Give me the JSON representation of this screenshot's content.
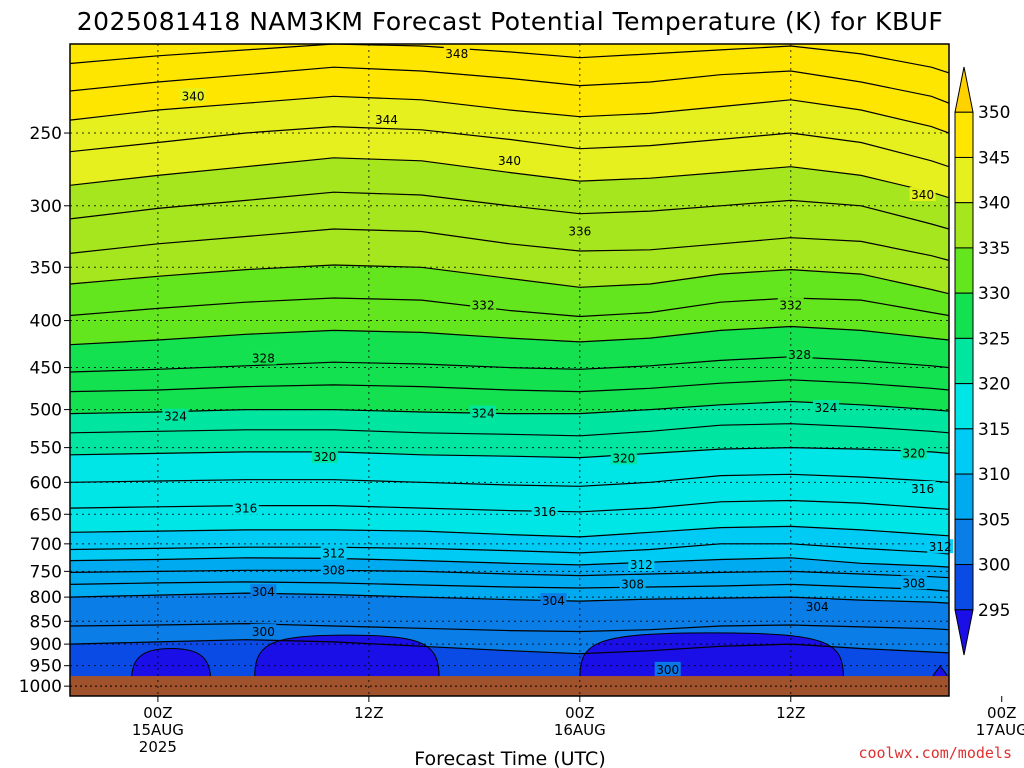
{
  "chart_data": {
    "type": "heatmap",
    "title": "2025081418 NAM3KM Forecast Potential Temperature (K) for KBUF",
    "xlabel": "Forecast Time (UTC)",
    "ylabel": "",
    "credit": "coolwx.com/models",
    "x_range_hours": [
      -5,
      45
    ],
    "y_axis": {
      "scale": "log",
      "ticks": [
        250,
        300,
        350,
        400,
        450,
        500,
        550,
        600,
        650,
        700,
        750,
        800,
        850,
        900,
        950,
        1000
      ],
      "range": [
        200,
        1025
      ]
    },
    "x_ticks": [
      {
        "hour": 0,
        "lines": [
          "00Z",
          "15AUG",
          "2025"
        ]
      },
      {
        "hour": 12,
        "lines": [
          "12Z"
        ]
      },
      {
        "hour": 24,
        "lines": [
          "00Z",
          "16AUG"
        ]
      },
      {
        "hour": 36,
        "lines": [
          "12Z"
        ]
      },
      {
        "hour": 48,
        "lines": [
          "00Z",
          "17AUG"
        ]
      }
    ],
    "grid": true,
    "colorbar": {
      "levels": [
        295,
        300,
        305,
        310,
        315,
        320,
        325,
        330,
        335,
        340,
        345,
        350
      ],
      "colors": [
        "#1a0fe6",
        "#0a4be6",
        "#0a7de6",
        "#00aaf0",
        "#00cbf5",
        "#00e6e6",
        "#00e6a0",
        "#14e150",
        "#64e61e",
        "#a6e61e",
        "#e6f01e",
        "#ffe600",
        "#ffd200"
      ]
    },
    "contour_levels": [
      300,
      302,
      304,
      306,
      308,
      310,
      312,
      314,
      316,
      318,
      320,
      322,
      324,
      326,
      328,
      330,
      332,
      334,
      336,
      338,
      340,
      342,
      344,
      346,
      348
    ],
    "isentropes": [
      {
        "theta": 300,
        "pressure": [
          900,
          895,
          890,
          895,
          905,
          915,
          922,
          915,
          905,
          900,
          910,
          918,
          920
        ]
      },
      {
        "theta": 302,
        "pressure": [
          860,
          858,
          855,
          860,
          865,
          870,
          872,
          868,
          860,
          858,
          862,
          866,
          868
        ]
      },
      {
        "theta": 304,
        "pressure": [
          800,
          796,
          792,
          795,
          800,
          805,
          808,
          804,
          802,
          800,
          806,
          810,
          812
        ]
      },
      {
        "theta": 306,
        "pressure": [
          775,
          772,
          770,
          772,
          776,
          780,
          782,
          780,
          778,
          775,
          780,
          785,
          788
        ]
      },
      {
        "theta": 308,
        "pressure": [
          752,
          750,
          748,
          748,
          750,
          755,
          758,
          755,
          752,
          750,
          755,
          760,
          762
        ]
      },
      {
        "theta": 310,
        "pressure": [
          730,
          728,
          725,
          726,
          730,
          735,
          738,
          733,
          728,
          725,
          735,
          740,
          742
        ]
      },
      {
        "theta": 312,
        "pressure": [
          710,
          708,
          706,
          706,
          708,
          712,
          716,
          710,
          700,
          700,
          708,
          715,
          718
        ]
      },
      {
        "theta": 314,
        "pressure": [
          680,
          678,
          676,
          676,
          678,
          684,
          688,
          680,
          672,
          670,
          676,
          684,
          686
        ]
      },
      {
        "theta": 316,
        "pressure": [
          640,
          638,
          636,
          636,
          640,
          644,
          646,
          640,
          630,
          628,
          632,
          640,
          642
        ]
      },
      {
        "theta": 318,
        "pressure": [
          600,
          598,
          596,
          596,
          600,
          604,
          606,
          600,
          590,
          588,
          592,
          598,
          600
        ]
      },
      {
        "theta": 320,
        "pressure": [
          560,
          558,
          556,
          556,
          560,
          562,
          564,
          558,
          552,
          550,
          552,
          556,
          558
        ]
      },
      {
        "theta": 322,
        "pressure": [
          530,
          528,
          526,
          526,
          530,
          532,
          534,
          528,
          520,
          518,
          522,
          528,
          530
        ]
      },
      {
        "theta": 324,
        "pressure": [
          505,
          503,
          500,
          500,
          503,
          505,
          505,
          500,
          494,
          490,
          494,
          500,
          502
        ]
      },
      {
        "theta": 326,
        "pressure": [
          478,
          476,
          472,
          470,
          472,
          476,
          478,
          474,
          468,
          464,
          468,
          474,
          476
        ]
      },
      {
        "theta": 328,
        "pressure": [
          455,
          452,
          448,
          444,
          446,
          450,
          452,
          448,
          442,
          438,
          442,
          448,
          450
        ]
      },
      {
        "theta": 330,
        "pressure": [
          425,
          420,
          414,
          410,
          412,
          418,
          422,
          418,
          410,
          406,
          410,
          418,
          420
        ]
      },
      {
        "theta": 332,
        "pressure": [
          395,
          388,
          382,
          378,
          380,
          390,
          396,
          392,
          382,
          378,
          380,
          392,
          395
        ]
      },
      {
        "theta": 334,
        "pressure": [
          365,
          358,
          352,
          348,
          350,
          360,
          368,
          365,
          356,
          352,
          356,
          370,
          374
        ]
      },
      {
        "theta": 336,
        "pressure": [
          338,
          330,
          324,
          318,
          320,
          330,
          336,
          335,
          330,
          325,
          328,
          340,
          344
        ]
      },
      {
        "theta": 338,
        "pressure": [
          310,
          302,
          296,
          290,
          292,
          300,
          306,
          304,
          300,
          296,
          300,
          314,
          318
        ]
      },
      {
        "theta": 340,
        "pressure": [
          285,
          278,
          272,
          266,
          268,
          276,
          282,
          280,
          276,
          272,
          278,
          290,
          294
        ]
      },
      {
        "theta": 342,
        "pressure": [
          262,
          256,
          250,
          246,
          248,
          254,
          260,
          258,
          254,
          250,
          256,
          268,
          272
        ]
      },
      {
        "theta": 344,
        "pressure": [
          242,
          236,
          232,
          228,
          230,
          236,
          240,
          238,
          234,
          230,
          236,
          246,
          250
        ]
      },
      {
        "theta": 346,
        "pressure": [
          225,
          220,
          216,
          212,
          214,
          218,
          222,
          220,
          216,
          214,
          220,
          228,
          232
        ]
      },
      {
        "theta": 348,
        "pressure": [
          210,
          206,
          203,
          200,
          201,
          204,
          207,
          205,
          203,
          201,
          205,
          212,
          215
        ]
      }
    ],
    "isentrope_hours": [
      -5,
      0,
      5,
      10,
      15,
      20,
      24,
      28,
      32,
      36,
      40,
      44,
      45
    ],
    "contour_label_positions": [
      {
        "text": "348",
        "hour": 17,
        "pressure": 205
      },
      {
        "text": "340",
        "hour": 2,
        "pressure": 228
      },
      {
        "text": "344",
        "hour": 13,
        "pressure": 242
      },
      {
        "text": "340",
        "hour": 20,
        "pressure": 268
      },
      {
        "text": "340",
        "hour": 43.5,
        "pressure": 292
      },
      {
        "text": "336",
        "hour": 24,
        "pressure": 320
      },
      {
        "text": "332",
        "hour": 18.5,
        "pressure": 385
      },
      {
        "text": "332",
        "hour": 36,
        "pressure": 385
      },
      {
        "text": "328",
        "hour": 6,
        "pressure": 440
      },
      {
        "text": "328",
        "hour": 36.5,
        "pressure": 436
      },
      {
        "text": "324",
        "hour": 1,
        "pressure": 509
      },
      {
        "text": "324",
        "hour": 18.5,
        "pressure": 505
      },
      {
        "text": "324",
        "hour": 38,
        "pressure": 498
      },
      {
        "text": "320",
        "hour": 9.5,
        "pressure": 563
      },
      {
        "text": "320",
        "hour": 26.5,
        "pressure": 565
      },
      {
        "text": "320",
        "hour": 43,
        "pressure": 558
      },
      {
        "text": "316",
        "hour": 5,
        "pressure": 641
      },
      {
        "text": "316",
        "hour": 22,
        "pressure": 646
      },
      {
        "text": "316",
        "hour": 43.5,
        "pressure": 610
      },
      {
        "text": "312",
        "hour": 10,
        "pressure": 717
      },
      {
        "text": "312",
        "hour": 27.5,
        "pressure": 738
      },
      {
        "text": "312",
        "hour": 44.5,
        "pressure": 706
      },
      {
        "text": "308",
        "hour": 10,
        "pressure": 748
      },
      {
        "text": "308",
        "hour": 27,
        "pressure": 775
      },
      {
        "text": "308",
        "hour": 43,
        "pressure": 773
      },
      {
        "text": "304",
        "hour": 6,
        "pressure": 790
      },
      {
        "text": "304",
        "hour": 22.5,
        "pressure": 808
      },
      {
        "text": "304",
        "hour": 37.5,
        "pressure": 820
      },
      {
        "text": "300",
        "hour": 6,
        "pressure": 873
      },
      {
        "text": "300",
        "hour": 29,
        "pressure": 960
      }
    ],
    "blobs_below_295": [
      {
        "hour_start": -1.5,
        "hour_end": 3,
        "top_pressure": 910
      },
      {
        "hour_start": 5.5,
        "hour_end": 16,
        "top_pressure": 880
      },
      {
        "hour_start": 24,
        "hour_end": 39,
        "top_pressure": 875
      },
      {
        "hour_start": 44,
        "hour_end": 45,
        "top_pressure": 950
      }
    ],
    "surface": {
      "pressure": 975,
      "color": "#a0522d"
    }
  }
}
